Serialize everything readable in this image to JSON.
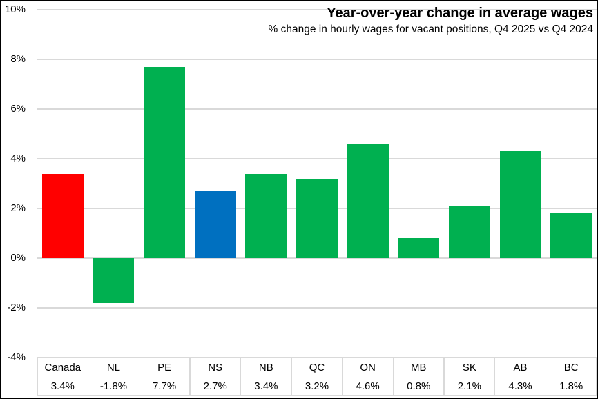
{
  "chart_data": {
    "type": "bar",
    "title": "Year-over-year change in average wages",
    "subtitle": "% change in hourly wages for vacant positions, Q4 2025 vs Q4 2024",
    "categories": [
      "Canada",
      "NL",
      "PE",
      "NS",
      "NB",
      "QC",
      "ON",
      "MB",
      "SK",
      "AB",
      "BC"
    ],
    "values": [
      3.4,
      -1.8,
      7.7,
      2.7,
      3.4,
      3.2,
      4.6,
      0.8,
      2.1,
      4.3,
      1.8
    ],
    "value_labels": [
      "3.4%",
      "-1.8%",
      "7.7%",
      "2.7%",
      "3.4%",
      "3.2%",
      "4.6%",
      "0.8%",
      "2.1%",
      "4.3%",
      "1.8%"
    ],
    "bar_colors": [
      "#FF0000",
      "#00B050",
      "#00B050",
      "#0070C0",
      "#00B050",
      "#00B050",
      "#00B050",
      "#00B050",
      "#00B050",
      "#00B050",
      "#00B050"
    ],
    "y_ticks": [
      "10%",
      "8%",
      "6%",
      "4%",
      "2%",
      "0%",
      "-2%",
      "-4%"
    ],
    "ylim": [
      -4,
      10
    ],
    "xlabel": "",
    "ylabel": "",
    "grid": true,
    "legend": "none",
    "colors": {
      "gridline": "#D9D9D9",
      "text": "#000000",
      "border": "#000000",
      "background": "#FFFFFF"
    }
  }
}
